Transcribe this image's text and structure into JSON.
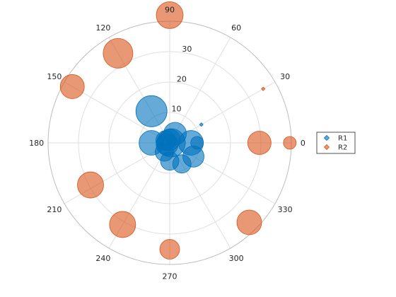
{
  "chart_data": {
    "type": "scatter",
    "coordinate_system": "polar",
    "theta_unit": "degrees",
    "theta_ticks": [
      0,
      30,
      60,
      90,
      120,
      150,
      180,
      210,
      240,
      270,
      300,
      330
    ],
    "r_ticks": [
      10,
      20,
      30
    ],
    "rlim": [
      0,
      40
    ],
    "grid": true,
    "legend_position": "right",
    "series": [
      {
        "name": "R1",
        "color": "#0072BD",
        "points": [
          {
            "theta": 0,
            "r": 0.5,
            "size": 40
          },
          {
            "theta": 30,
            "r": 12,
            "size": 2
          },
          {
            "theta": 60,
            "r": 3.5,
            "size": 32
          },
          {
            "theta": 90,
            "r": 1,
            "size": 30
          },
          {
            "theta": 120,
            "r": 12,
            "size": 44
          },
          {
            "theta": 150,
            "r": 1.5,
            "size": 28
          },
          {
            "theta": 180,
            "r": 6,
            "size": 35
          },
          {
            "theta": 210,
            "r": 1,
            "size": 31
          },
          {
            "theta": 240,
            "r": 3.5,
            "size": 26
          },
          {
            "theta": 270,
            "r": 6,
            "size": 26
          },
          {
            "theta": 300,
            "r": 8,
            "size": 26
          },
          {
            "theta": 330,
            "r": 9,
            "size": 30
          },
          {
            "theta": 0,
            "r": 9,
            "size": 18
          },
          {
            "theta": 0,
            "r": 7,
            "size": 35
          }
        ]
      },
      {
        "name": "R2",
        "color": "#D95319",
        "points": [
          {
            "theta": 0,
            "r": 39.5,
            "size": 18
          },
          {
            "theta": 30,
            "r": 35.5,
            "size": 2
          },
          {
            "theta": 90,
            "r": 42,
            "size": 38
          },
          {
            "theta": 120,
            "r": 34,
            "size": 42
          },
          {
            "theta": 150,
            "r": 37,
            "size": 34
          },
          {
            "theta": 0,
            "r": 29.5,
            "size": 33
          },
          {
            "theta": 180,
            "r": 0,
            "size": 0
          },
          {
            "theta": 208,
            "r": 29.5,
            "size": 37
          },
          {
            "theta": 240,
            "r": 31,
            "size": 37
          },
          {
            "theta": 270,
            "r": 35,
            "size": 28
          },
          {
            "theta": 315,
            "r": 37,
            "size": 35
          }
        ]
      }
    ]
  }
}
